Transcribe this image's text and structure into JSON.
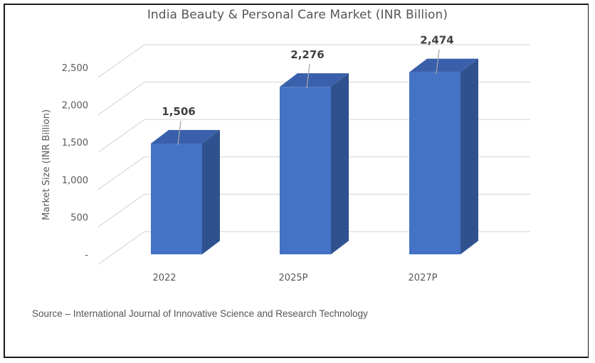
{
  "chart_data": {
    "type": "bar",
    "style": "3d-column",
    "title": "India Beauty & Personal Care Market (INR Billion)",
    "xlabel": "",
    "ylabel": "Market Size (INR Billion)",
    "categories": [
      "2022",
      "2025P",
      "2027P"
    ],
    "values": [
      1506,
      2276,
      2474
    ],
    "data_labels": [
      "1,506",
      "2,276",
      "2,474"
    ],
    "ylim": [
      0,
      2500
    ],
    "yticks": [
      0,
      500,
      1000,
      1500,
      2000,
      2500
    ],
    "ytick_labels": [
      "-",
      "500",
      "1,000",
      "1,500",
      "2,000",
      "2,500"
    ],
    "grid": true,
    "legend": "none",
    "colors": {
      "front": "#4472C4",
      "side": "#2F528F",
      "top": "#3A60AB",
      "grid": "#D9D9D9"
    }
  },
  "source_note": "Source – International Journal of Innovative Science and Research Technology"
}
